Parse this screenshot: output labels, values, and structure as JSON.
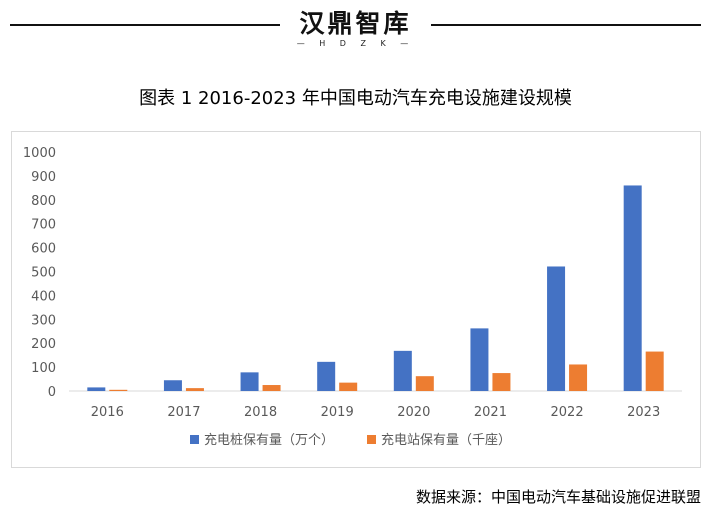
{
  "header": {
    "brand": "汉鼎智库",
    "brand_sub": "— H D Z K —"
  },
  "title": "图表 1 2016-2023 年中国电动汽车充电设施建设规模",
  "source": "数据来源：中国电动汽车基础设施促进联盟",
  "colors": {
    "series1": "#4472C4",
    "series2": "#ED7D31",
    "axis": "#d9d9d9",
    "tick_text": "#595959"
  },
  "chart_data": {
    "type": "bar",
    "title": "",
    "xlabel": "",
    "ylabel": "",
    "categories": [
      "2016",
      "2017",
      "2018",
      "2019",
      "2020",
      "2021",
      "2022",
      "2023"
    ],
    "series": [
      {
        "name": "充电桩保有量（万个）",
        "values": [
          15,
          45,
          78,
          122,
          168,
          262,
          521,
          860
        ]
      },
      {
        "name": "充电站保有量（千座）",
        "values": [
          5,
          12,
          25,
          35,
          62,
          75,
          111,
          165
        ]
      }
    ],
    "ylim": [
      0,
      1000
    ],
    "yticks": [
      0,
      100,
      200,
      300,
      400,
      500,
      600,
      700,
      800,
      900,
      1000
    ],
    "grid": false,
    "legend": "bottom"
  }
}
